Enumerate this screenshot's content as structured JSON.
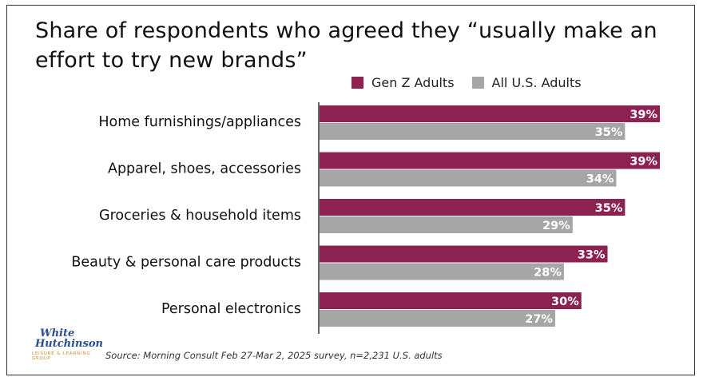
{
  "chart_data": {
    "type": "bar",
    "orientation": "horizontal",
    "title": "Share of respondents who agreed they “usually make an effort to try new brands”",
    "categories": [
      "Home furnishings/appliances",
      "Apparel, shoes, accessories",
      "Groceries & household items",
      "Beauty & personal care products",
      "Personal electronics"
    ],
    "series": [
      {
        "name": "Gen Z Adults",
        "color": "#8b2252",
        "values": [
          39,
          39,
          35,
          33,
          30
        ],
        "labels": [
          "39%",
          "39%",
          "35%",
          "33%",
          "30%"
        ]
      },
      {
        "name": "All U.S. Adults",
        "color": "#a6a6a6",
        "values": [
          35,
          34,
          29,
          28,
          27
        ],
        "labels": [
          "35%",
          "34%",
          "29%",
          "28%",
          "27%"
        ]
      }
    ],
    "xlim": [
      0,
      40
    ],
    "legend_position": "top-right",
    "grid": false
  },
  "source": "Source: Morning Consult Feb 27-Mar 2, 2025 survey, n=2,231 U.S. adults",
  "logo": {
    "line1": "White",
    "line2": "Hutchinson",
    "line3": "LEISURE & LEARNING GROUP"
  }
}
